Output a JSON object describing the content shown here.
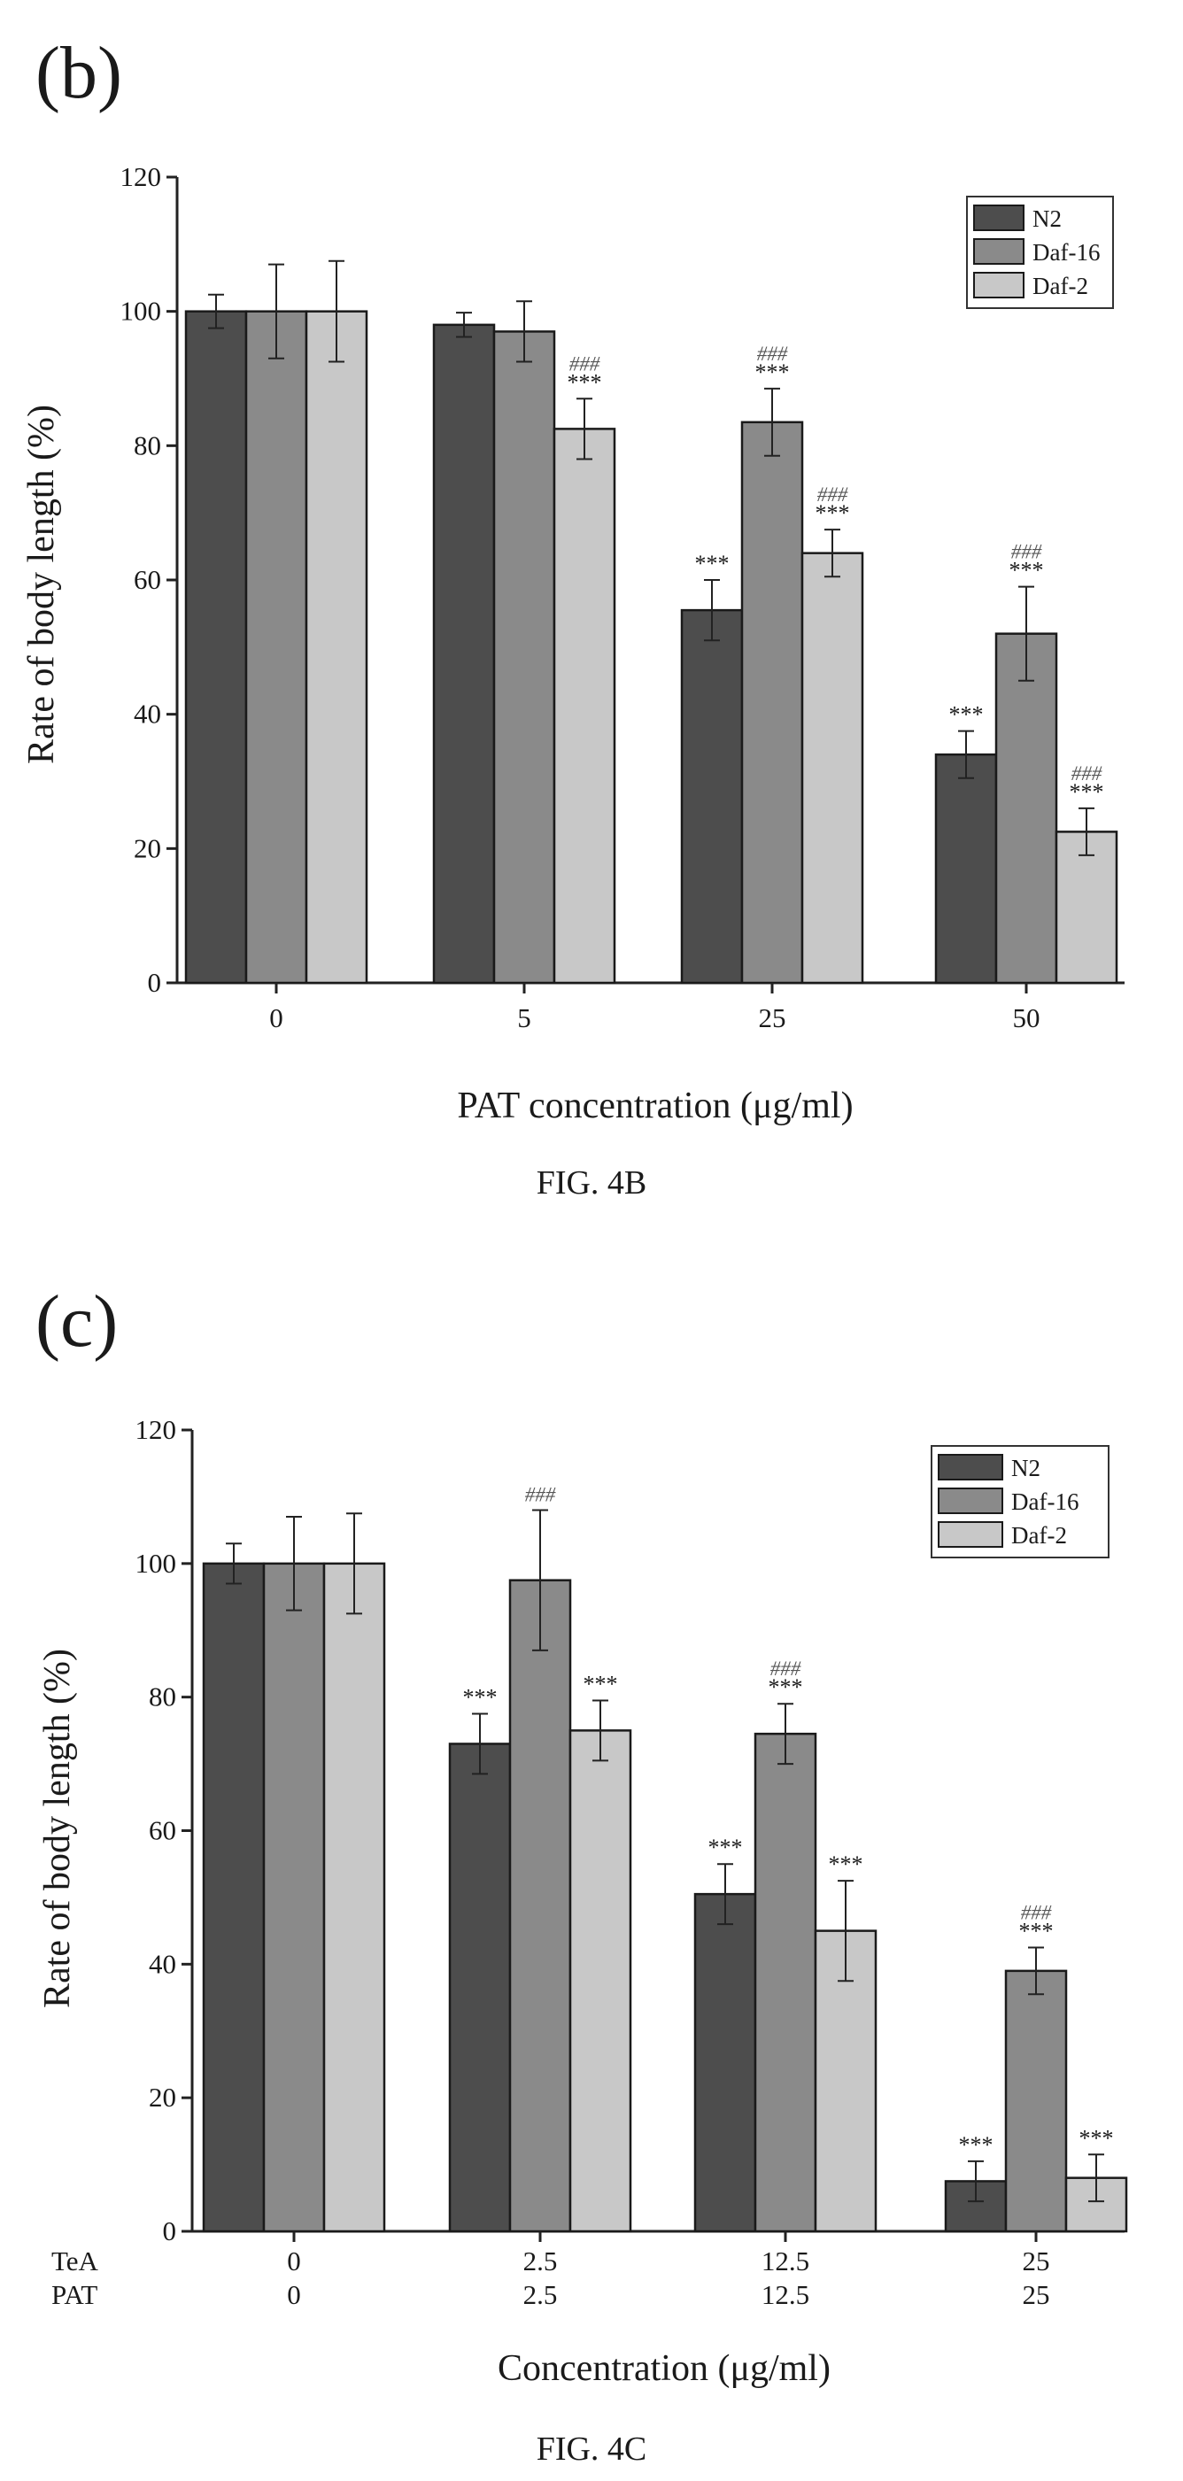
{
  "chart_data": [
    {
      "type": "bar",
      "panel_label": "(b)",
      "caption": "FIG. 4B",
      "xlabel": "PAT concentration (μg/ml)",
      "ylabel": "Rate of body length (%)",
      "ylim": [
        0,
        120
      ],
      "yticks": [
        0,
        20,
        40,
        60,
        80,
        100,
        120
      ],
      "categories": [
        "0",
        "5",
        "25",
        "50"
      ],
      "legend_position": "top-right",
      "series": [
        {
          "name": "N2",
          "color": "#4d4d4d",
          "values": [
            100,
            98,
            55.5,
            34
          ],
          "errors": [
            2.5,
            1.8,
            4.5,
            3.5
          ],
          "stars": [
            "",
            "",
            "***",
            "***"
          ],
          "hashes": [
            "",
            "",
            "",
            ""
          ]
        },
        {
          "name": "Daf-16",
          "color": "#8a8a8a",
          "values": [
            100,
            97,
            83.5,
            52
          ],
          "errors": [
            7,
            4.5,
            5,
            7
          ],
          "stars": [
            "",
            "",
            "***",
            "***"
          ],
          "hashes": [
            "",
            "",
            "###",
            "###"
          ]
        },
        {
          "name": "Daf-2",
          "color": "#c8c8c8",
          "values": [
            100,
            82.5,
            64,
            22.5
          ],
          "errors": [
            7.5,
            4.5,
            3.5,
            3.5
          ],
          "stars": [
            "",
            "***",
            "***",
            "***"
          ],
          "hashes": [
            "",
            "###",
            "###",
            "###"
          ]
        }
      ]
    },
    {
      "type": "bar",
      "panel_label": "(c)",
      "caption": "FIG. 4C",
      "xlabel": "Concentration (μg/ml)",
      "ylabel": "Rate of body length (%)",
      "ylim": [
        0,
        120
      ],
      "yticks": [
        0,
        20,
        40,
        60,
        80,
        100,
        120
      ],
      "category_rows": [
        {
          "label": "TeA",
          "values": [
            "0",
            "2.5",
            "12.5",
            "25"
          ]
        },
        {
          "label": "PAT",
          "values": [
            "0",
            "2.5",
            "12.5",
            "25"
          ]
        }
      ],
      "legend_position": "top-right",
      "series": [
        {
          "name": "N2",
          "color": "#4d4d4d",
          "values": [
            100,
            73,
            50.5,
            7.5
          ],
          "errors": [
            3,
            4.5,
            4.5,
            3
          ],
          "stars": [
            "",
            "***",
            "***",
            "***"
          ],
          "hashes": [
            "",
            "",
            "",
            ""
          ]
        },
        {
          "name": "Daf-16",
          "color": "#8a8a8a",
          "values": [
            100,
            97.5,
            74.5,
            39
          ],
          "errors": [
            7,
            10.5,
            4.5,
            3.5
          ],
          "stars": [
            "",
            "",
            "***",
            "***"
          ],
          "hashes": [
            "",
            "###",
            "###",
            "###"
          ]
        },
        {
          "name": "Daf-2",
          "color": "#c8c8c8",
          "values": [
            100,
            75,
            45,
            8
          ],
          "errors": [
            7.5,
            4.5,
            7.5,
            3.5
          ],
          "stars": [
            "",
            "***",
            "***",
            "***"
          ],
          "hashes": [
            "",
            "",
            "",
            ""
          ]
        }
      ]
    }
  ]
}
